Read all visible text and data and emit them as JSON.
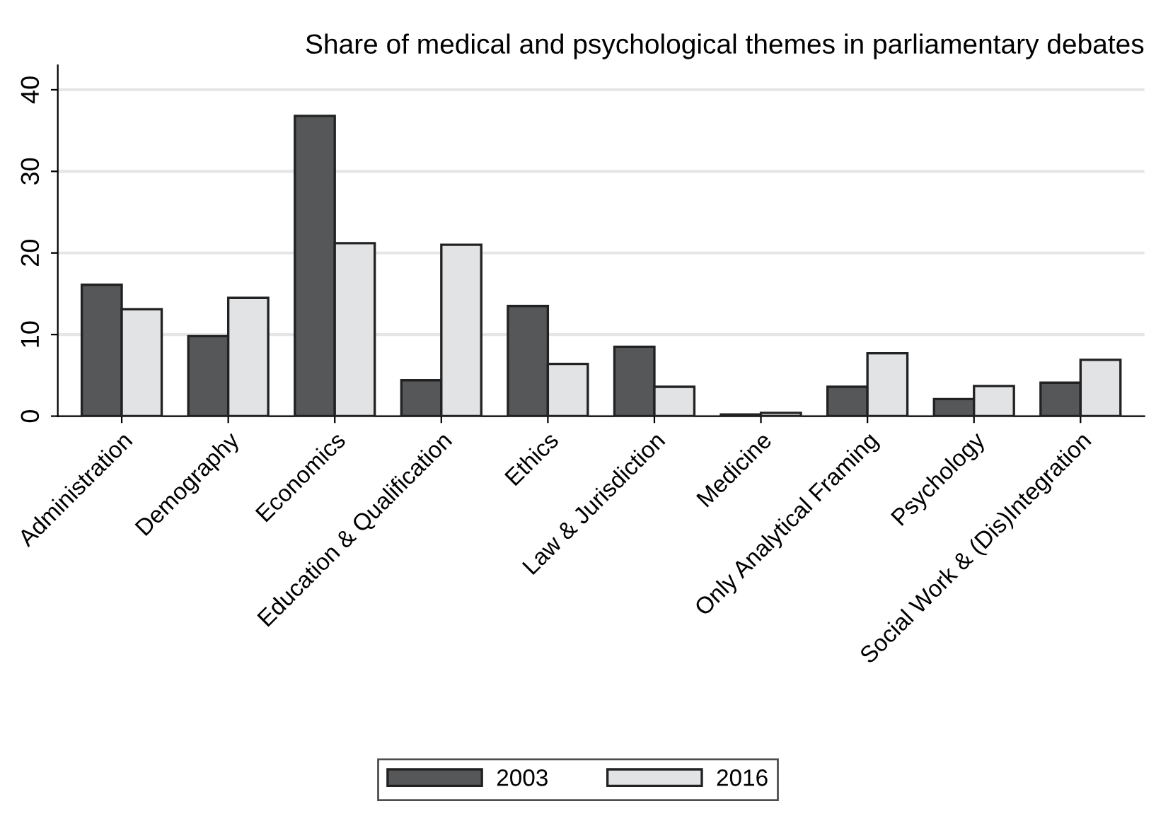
{
  "chart_data": {
    "type": "bar",
    "title": "Share of medical and psychological themes in parliamentary debates",
    "categories": [
      "Administration",
      "Demography",
      "Economics",
      "Education & Qualification",
      "Ethics",
      "Law & Jurisdiction",
      "Medicine",
      "Only Analytical Framing",
      "Psychology",
      "Social Work & (Dis)Integration"
    ],
    "series": [
      {
        "name": "2003",
        "color": "#555759",
        "values": [
          16.1,
          9.8,
          36.8,
          4.4,
          13.5,
          8.5,
          0.2,
          3.6,
          2.1,
          4.1
        ]
      },
      {
        "name": "2016",
        "color": "#e2e3e5",
        "values": [
          13.1,
          14.5,
          21.2,
          21.0,
          6.4,
          3.6,
          0.4,
          7.7,
          3.7,
          6.9
        ]
      }
    ],
    "ylim": [
      0,
      43
    ],
    "yticks": [
      0,
      10,
      20,
      30,
      40
    ],
    "grid": "y",
    "legend": "bottom"
  }
}
